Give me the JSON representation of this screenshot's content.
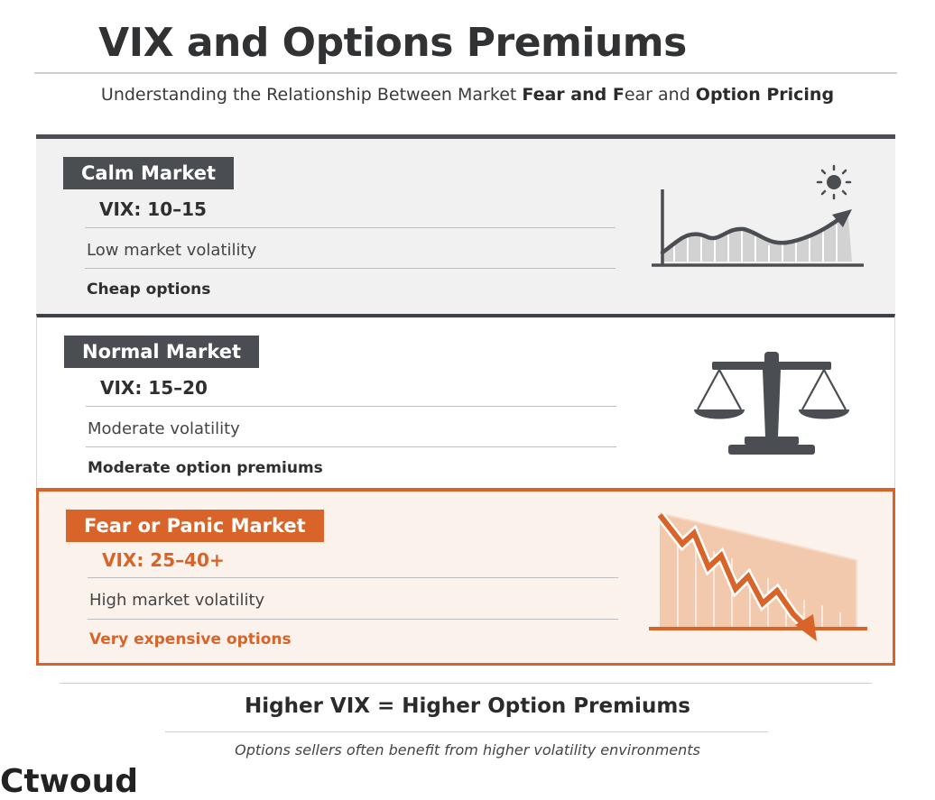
{
  "header": {
    "title": "VIX and Options Premiums",
    "subtitle_parts": [
      "Understanding the Relationship Between Market ",
      "Fear and F",
      "ear and ",
      "Option Pricing"
    ]
  },
  "markets": [
    {
      "label": "Calm Market",
      "vix": "VIX: 10–15",
      "volatility": "Low market volatility",
      "premium": "Cheap options",
      "icon": "rising-chart-with-sun-icon"
    },
    {
      "label": "Normal Market",
      "vix": "VIX: 15–20",
      "volatility": "Moderate volatility",
      "premium": "Moderate option premiums",
      "icon": "balance-scale-icon"
    },
    {
      "label": "Fear or Panic Market",
      "vix": "VIX: 25–40+",
      "volatility": "High market volatility",
      "premium": "Very expensive options",
      "icon": "falling-chart-icon"
    }
  ],
  "footer": {
    "summary": "Higher VIX = Higher Option Premiums",
    "note": "Options sellers often benefit from higher volatility environments",
    "cut_off_text": "Ctwoud"
  },
  "colors": {
    "dark": "#4a4d51",
    "accent": "#d9642a",
    "calm_bg": "#f1f1f1",
    "fear_bg": "#fbf2ec"
  }
}
